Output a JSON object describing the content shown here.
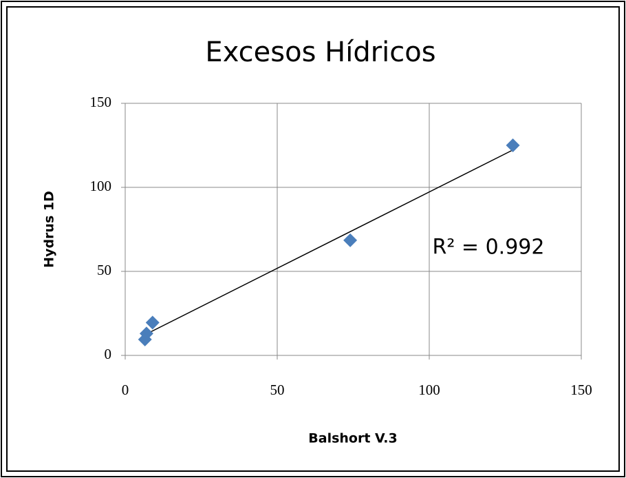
{
  "chart_data": {
    "type": "scatter",
    "title": "Excesos Hídricos",
    "x_label": "Balshort V.3",
    "y_label": "Hydrus 1D",
    "annotation": "R² = 0.992",
    "series": [
      {
        "color": "#4a7ebb",
        "x": [
          6.5,
          7,
          9,
          74,
          127.5
        ],
        "values": [
          9.5,
          13,
          19.5,
          68.5,
          125
        ]
      }
    ],
    "trendline": true,
    "xlim": [
      0,
      150
    ],
    "xticks": [
      0,
      50,
      100,
      150
    ],
    "ylim": [
      0,
      150
    ],
    "yticks": [
      0,
      50,
      100,
      150
    ],
    "grid": true
  }
}
